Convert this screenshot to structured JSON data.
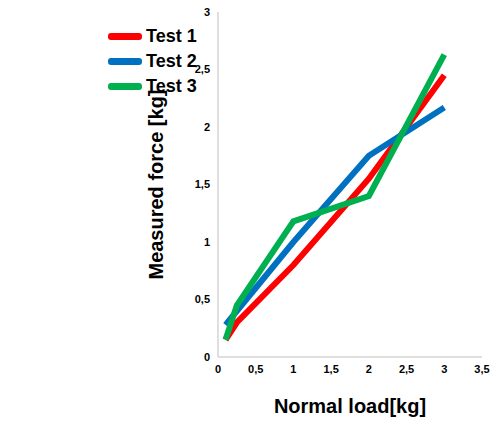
{
  "chart_data": {
    "type": "line",
    "x_label": "Normal load[kg]",
    "y_label": "Measured force [kg]",
    "x": [
      0.1,
      0.25,
      1,
      2,
      3
    ],
    "series": [
      {
        "name": "Test 1",
        "color": "#ff0000",
        "values": [
          0.15,
          0.3,
          0.8,
          1.55,
          2.45
        ]
      },
      {
        "name": "Test 2",
        "color": "#0070c0",
        "values": [
          0.28,
          0.4,
          1.0,
          1.75,
          2.17
        ]
      },
      {
        "name": "Test 3",
        "color": "#00b050",
        "values": [
          0.15,
          0.45,
          1.18,
          1.4,
          2.63
        ]
      }
    ],
    "xlim": [
      0,
      3.5
    ],
    "xticks": [
      0,
      {
        "value": 0.5,
        "label": "0,5"
      },
      1,
      {
        "value": 1.5,
        "label": "1,5"
      },
      2,
      {
        "value": 2.5,
        "label": "2,5"
      },
      3,
      {
        "value": 3.5,
        "label": "3,5"
      }
    ],
    "ylim": [
      0,
      3
    ],
    "yticks": [
      0,
      {
        "value": 0.5,
        "label": "0,5"
      },
      1,
      {
        "value": 1.5,
        "label": "1,5"
      },
      2,
      {
        "value": 2.5,
        "label": "2,5"
      },
      3
    ],
    "grid": false,
    "legend": "upper left"
  }
}
